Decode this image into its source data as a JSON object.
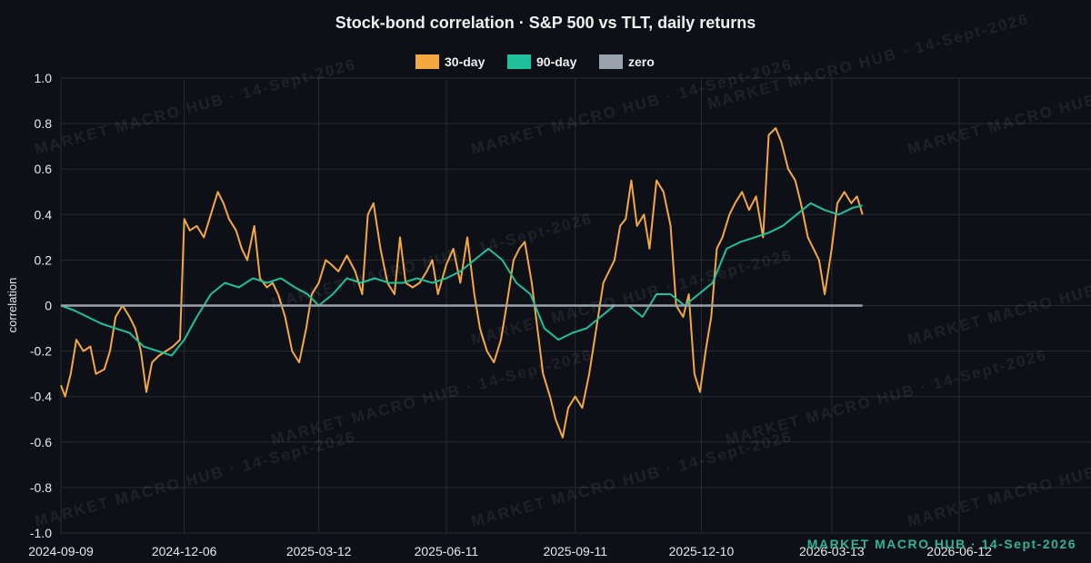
{
  "chart_data": {
    "type": "line",
    "title": "Stock-bond correlation · S&P 500 vs TLT, daily returns",
    "ylabel": "correlation",
    "xlabel": "",
    "ylim": [
      -1.0,
      1.0
    ],
    "yticks": [
      "1.0",
      "0.8",
      "0.6",
      "0.4",
      "0.2",
      "0",
      "-0.2",
      "-0.4",
      "-0.6",
      "-0.8",
      "-1.0"
    ],
    "xlim": [
      "2024-09-09",
      "2026-09-14"
    ],
    "xticks": [
      "2024-09-09",
      "2024-12-06",
      "2025-03-12",
      "2025-06-11",
      "2025-09-11",
      "2025-12-10",
      "2026-03-13",
      "2026-06-12"
    ],
    "grid": true,
    "legend_position": "top-center",
    "watermark": "MARKET MACRO HUB · 14-Sept-2026",
    "series": [
      {
        "name": "30-day",
        "color": "#f5a742",
        "points": [
          [
            "2024-09-09",
            -0.35
          ],
          [
            "2024-09-12",
            -0.4
          ],
          [
            "2024-09-16",
            -0.3
          ],
          [
            "2024-09-20",
            -0.15
          ],
          [
            "2024-09-25",
            -0.2
          ],
          [
            "2024-09-30",
            -0.18
          ],
          [
            "2024-10-04",
            -0.3
          ],
          [
            "2024-10-10",
            -0.28
          ],
          [
            "2024-10-14",
            -0.2
          ],
          [
            "2024-10-18",
            -0.05
          ],
          [
            "2024-10-23",
            0.0
          ],
          [
            "2024-10-28",
            -0.05
          ],
          [
            "2024-11-01",
            -0.1
          ],
          [
            "2024-11-05",
            -0.2
          ],
          [
            "2024-11-09",
            -0.38
          ],
          [
            "2024-11-13",
            -0.25
          ],
          [
            "2024-11-18",
            -0.22
          ],
          [
            "2024-11-23",
            -0.2
          ],
          [
            "2024-11-28",
            -0.18
          ],
          [
            "2024-12-03",
            -0.15
          ],
          [
            "2024-12-06",
            0.38
          ],
          [
            "2024-12-10",
            0.33
          ],
          [
            "2024-12-15",
            0.35
          ],
          [
            "2024-12-20",
            0.3
          ],
          [
            "2024-12-25",
            0.4
          ],
          [
            "2024-12-30",
            0.5
          ],
          [
            "2025-01-03",
            0.45
          ],
          [
            "2025-01-07",
            0.38
          ],
          [
            "2025-01-12",
            0.33
          ],
          [
            "2025-01-16",
            0.25
          ],
          [
            "2025-01-20",
            0.2
          ],
          [
            "2025-01-25",
            0.35
          ],
          [
            "2025-01-29",
            0.12
          ],
          [
            "2025-02-03",
            0.08
          ],
          [
            "2025-02-07",
            0.1
          ],
          [
            "2025-02-11",
            0.05
          ],
          [
            "2025-02-16",
            -0.05
          ],
          [
            "2025-02-21",
            -0.2
          ],
          [
            "2025-02-26",
            -0.25
          ],
          [
            "2025-03-03",
            -0.1
          ],
          [
            "2025-03-07",
            0.05
          ],
          [
            "2025-03-12",
            0.1
          ],
          [
            "2025-03-17",
            0.2
          ],
          [
            "2025-03-21",
            0.18
          ],
          [
            "2025-03-26",
            0.15
          ],
          [
            "2025-04-01",
            0.22
          ],
          [
            "2025-04-07",
            0.15
          ],
          [
            "2025-04-12",
            0.05
          ],
          [
            "2025-04-16",
            0.4
          ],
          [
            "2025-04-20",
            0.45
          ],
          [
            "2025-04-25",
            0.25
          ],
          [
            "2025-04-30",
            0.1
          ],
          [
            "2025-05-05",
            0.05
          ],
          [
            "2025-05-09",
            0.3
          ],
          [
            "2025-05-13",
            0.1
          ],
          [
            "2025-05-18",
            0.08
          ],
          [
            "2025-05-23",
            0.1
          ],
          [
            "2025-05-28",
            0.15
          ],
          [
            "2025-06-01",
            0.2
          ],
          [
            "2025-06-05",
            0.05
          ],
          [
            "2025-06-11",
            0.18
          ],
          [
            "2025-06-16",
            0.25
          ],
          [
            "2025-06-21",
            0.1
          ],
          [
            "2025-06-26",
            0.3
          ],
          [
            "2025-07-01",
            0.05
          ],
          [
            "2025-07-05",
            -0.1
          ],
          [
            "2025-07-10",
            -0.2
          ],
          [
            "2025-07-15",
            -0.25
          ],
          [
            "2025-07-20",
            -0.15
          ],
          [
            "2025-07-24",
            0.0
          ],
          [
            "2025-07-29",
            0.2
          ],
          [
            "2025-08-02",
            0.25
          ],
          [
            "2025-08-06",
            0.28
          ],
          [
            "2025-08-11",
            0.1
          ],
          [
            "2025-08-15",
            -0.1
          ],
          [
            "2025-08-19",
            -0.3
          ],
          [
            "2025-08-24",
            -0.4
          ],
          [
            "2025-08-28",
            -0.5
          ],
          [
            "2025-09-02",
            -0.58
          ],
          [
            "2025-09-06",
            -0.45
          ],
          [
            "2025-09-11",
            -0.4
          ],
          [
            "2025-09-16",
            -0.45
          ],
          [
            "2025-09-21",
            -0.3
          ],
          [
            "2025-09-26",
            -0.1
          ],
          [
            "2025-10-01",
            0.1
          ],
          [
            "2025-10-05",
            0.15
          ],
          [
            "2025-10-09",
            0.2
          ],
          [
            "2025-10-13",
            0.35
          ],
          [
            "2025-10-17",
            0.38
          ],
          [
            "2025-10-21",
            0.55
          ],
          [
            "2025-10-25",
            0.35
          ],
          [
            "2025-10-30",
            0.4
          ],
          [
            "2025-11-03",
            0.25
          ],
          [
            "2025-11-08",
            0.55
          ],
          [
            "2025-11-13",
            0.5
          ],
          [
            "2025-11-18",
            0.35
          ],
          [
            "2025-11-22",
            0.0
          ],
          [
            "2025-11-27",
            -0.05
          ],
          [
            "2025-12-01",
            0.05
          ],
          [
            "2025-12-05",
            -0.3
          ],
          [
            "2025-12-09",
            -0.38
          ],
          [
            "2025-12-13",
            -0.2
          ],
          [
            "2025-12-17",
            -0.05
          ],
          [
            "2025-12-21",
            0.25
          ],
          [
            "2025-12-25",
            0.3
          ],
          [
            "2025-12-30",
            0.4
          ],
          [
            "2026-01-03",
            0.45
          ],
          [
            "2026-01-08",
            0.5
          ],
          [
            "2026-01-13",
            0.42
          ],
          [
            "2026-01-18",
            0.48
          ],
          [
            "2026-01-23",
            0.3
          ],
          [
            "2026-01-27",
            0.75
          ],
          [
            "2026-02-01",
            0.78
          ],
          [
            "2026-02-05",
            0.72
          ],
          [
            "2026-02-10",
            0.6
          ],
          [
            "2026-02-15",
            0.55
          ],
          [
            "2026-02-19",
            0.45
          ],
          [
            "2026-02-24",
            0.3
          ],
          [
            "2026-02-28",
            0.25
          ],
          [
            "2026-03-04",
            0.2
          ],
          [
            "2026-03-08",
            0.05
          ],
          [
            "2026-03-13",
            0.25
          ],
          [
            "2026-03-17",
            0.45
          ],
          [
            "2026-03-22",
            0.5
          ],
          [
            "2026-03-27",
            0.45
          ],
          [
            "2026-03-31",
            0.48
          ],
          [
            "2026-04-04",
            0.4
          ]
        ]
      },
      {
        "name": "90-day",
        "color": "#1fc19c",
        "points": [
          [
            "2024-09-09",
            0.0
          ],
          [
            "2024-09-18",
            -0.02
          ],
          [
            "2024-09-28",
            -0.05
          ],
          [
            "2024-10-08",
            -0.08
          ],
          [
            "2024-10-18",
            -0.1
          ],
          [
            "2024-10-28",
            -0.12
          ],
          [
            "2024-11-07",
            -0.18
          ],
          [
            "2024-11-17",
            -0.2
          ],
          [
            "2024-11-27",
            -0.22
          ],
          [
            "2024-12-06",
            -0.15
          ],
          [
            "2024-12-15",
            -0.05
          ],
          [
            "2024-12-25",
            0.05
          ],
          [
            "2025-01-04",
            0.1
          ],
          [
            "2025-01-14",
            0.08
          ],
          [
            "2025-01-24",
            0.12
          ],
          [
            "2025-02-03",
            0.1
          ],
          [
            "2025-02-13",
            0.12
          ],
          [
            "2025-02-23",
            0.08
          ],
          [
            "2025-03-04",
            0.05
          ],
          [
            "2025-03-12",
            0.0
          ],
          [
            "2025-03-22",
            0.05
          ],
          [
            "2025-04-01",
            0.12
          ],
          [
            "2025-04-11",
            0.1
          ],
          [
            "2025-04-21",
            0.12
          ],
          [
            "2025-05-01",
            0.1
          ],
          [
            "2025-05-11",
            0.1
          ],
          [
            "2025-05-21",
            0.12
          ],
          [
            "2025-06-01",
            0.1
          ],
          [
            "2025-06-11",
            0.12
          ],
          [
            "2025-06-21",
            0.15
          ],
          [
            "2025-07-01",
            0.2
          ],
          [
            "2025-07-11",
            0.25
          ],
          [
            "2025-07-21",
            0.2
          ],
          [
            "2025-07-31",
            0.1
          ],
          [
            "2025-08-10",
            0.05
          ],
          [
            "2025-08-20",
            -0.1
          ],
          [
            "2025-08-30",
            -0.15
          ],
          [
            "2025-09-09",
            -0.12
          ],
          [
            "2025-09-19",
            -0.1
          ],
          [
            "2025-09-29",
            -0.05
          ],
          [
            "2025-10-09",
            0.0
          ],
          [
            "2025-10-19",
            0.0
          ],
          [
            "2025-10-29",
            -0.05
          ],
          [
            "2025-11-08",
            0.05
          ],
          [
            "2025-11-18",
            0.05
          ],
          [
            "2025-11-28",
            0.0
          ],
          [
            "2025-12-08",
            0.05
          ],
          [
            "2025-12-18",
            0.1
          ],
          [
            "2025-12-28",
            0.25
          ],
          [
            "2026-01-07",
            0.28
          ],
          [
            "2026-01-17",
            0.3
          ],
          [
            "2026-01-27",
            0.32
          ],
          [
            "2026-02-06",
            0.35
          ],
          [
            "2026-02-16",
            0.4
          ],
          [
            "2026-02-26",
            0.45
          ],
          [
            "2026-03-08",
            0.42
          ],
          [
            "2026-03-18",
            0.4
          ],
          [
            "2026-03-28",
            0.43
          ],
          [
            "2026-04-04",
            0.44
          ]
        ]
      },
      {
        "name": "zero",
        "color": "#9aa3ad",
        "points": [
          [
            "2024-09-09",
            0
          ],
          [
            "2026-04-04",
            0
          ]
        ]
      }
    ]
  }
}
